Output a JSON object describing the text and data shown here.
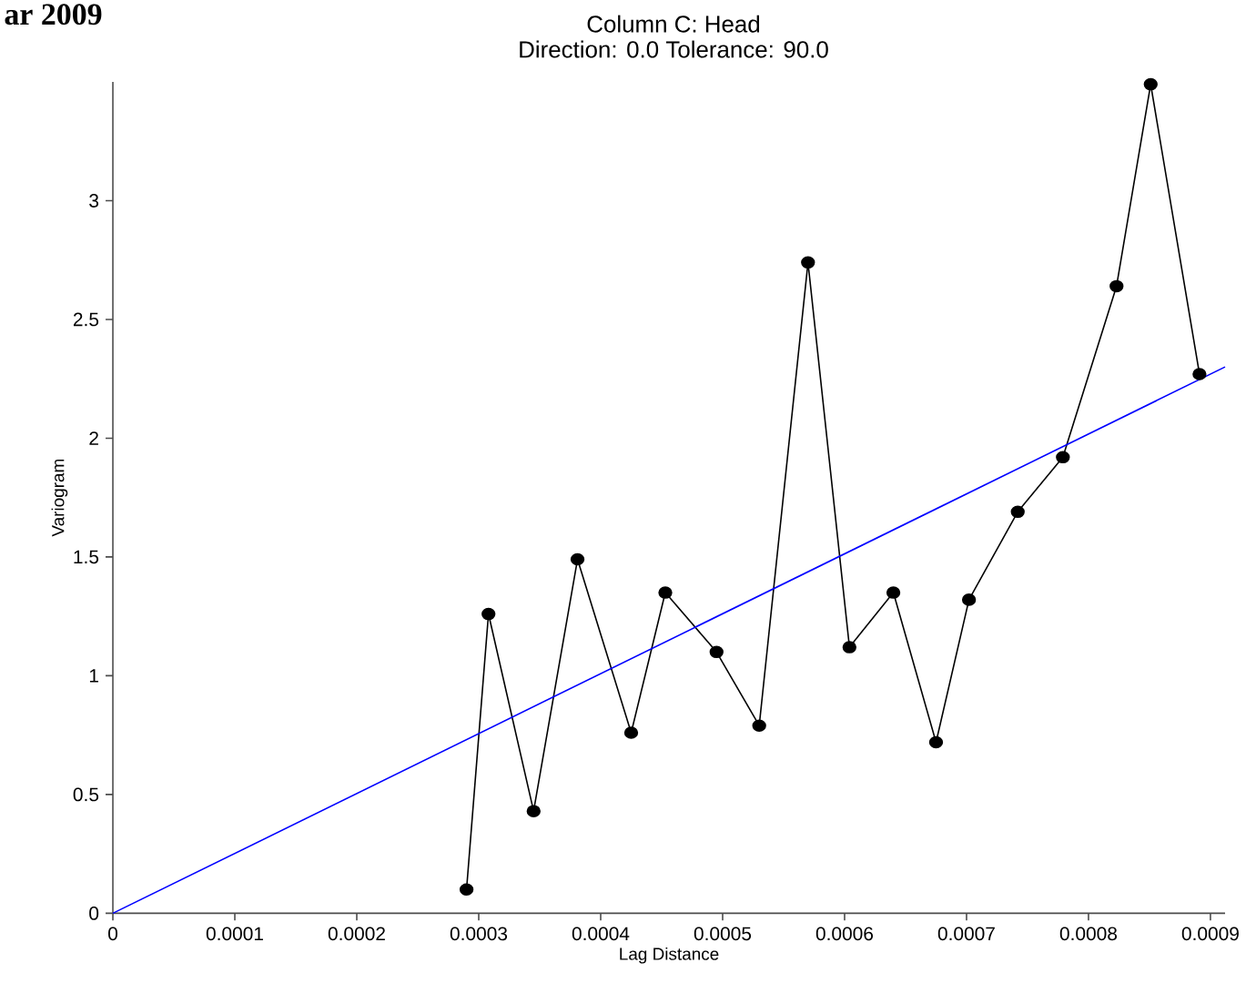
{
  "chart_data": {
    "type": "line",
    "title": "Column C:  Head",
    "subtitle": "Direction: 0.0   Tolerance: 90.0",
    "xlabel": "Lag Distance",
    "ylabel": "Variogram",
    "annotations": [
      "ar 2009"
    ],
    "series": [
      {
        "color": "#000000",
        "marker": "circle",
        "x": [
          0.00029,
          0.000308,
          0.000345,
          0.000381,
          0.000425,
          0.000453,
          0.000495,
          0.00053,
          0.00057,
          0.000604,
          0.00064,
          0.000675,
          0.000702,
          0.000742,
          0.000779,
          0.000823,
          0.000851,
          0.000891
        ],
        "values": [
          0.1,
          1.26,
          0.43,
          1.49,
          0.76,
          1.35,
          1.1,
          0.79,
          2.74,
          1.12,
          1.35,
          0.72,
          1.32,
          1.69,
          1.92,
          2.64,
          3.49,
          2.27
        ]
      },
      {
        "color": "#0000ff",
        "marker": "none",
        "x": [
          0,
          0.000912
        ],
        "values": [
          0,
          2.3
        ]
      }
    ],
    "xlim": [
      0,
      0.000912
    ],
    "ylim": [
      0,
      3.5
    ],
    "xticks": [
      0,
      0.0001,
      0.0002,
      0.0003,
      0.0004,
      0.0005,
      0.0006,
      0.0007,
      0.0008,
      0.0009
    ],
    "yticks": [
      0,
      0.5,
      1,
      1.5,
      2,
      2.5,
      3
    ],
    "grid": false,
    "line_style": "solid"
  }
}
